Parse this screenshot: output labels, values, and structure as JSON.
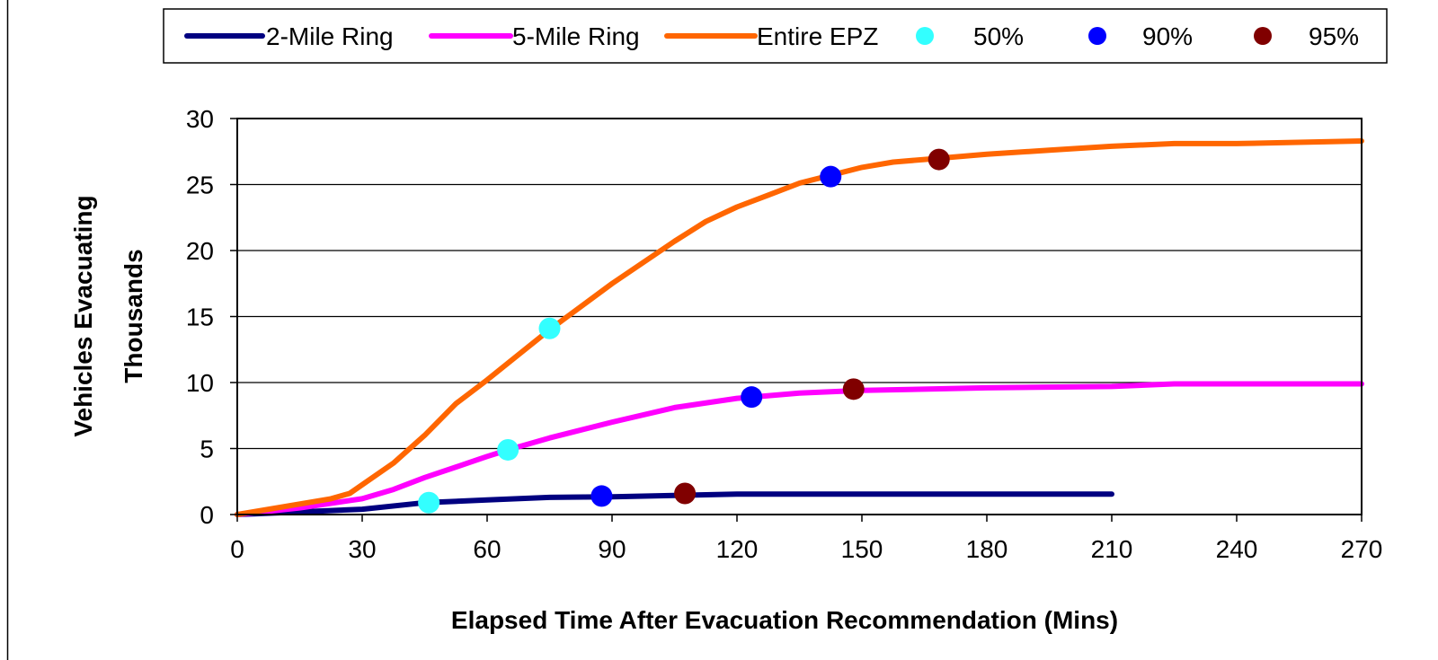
{
  "chart_data": {
    "type": "line",
    "title": "",
    "xlabel": "Elapsed Time After Evacuation Recommendation (Mins)",
    "ylabel": [
      "Vehicles Evacuating",
      "Thousands"
    ],
    "xlim": [
      0,
      270
    ],
    "ylim": [
      0,
      30
    ],
    "x_ticks": [
      0,
      30,
      60,
      90,
      120,
      150,
      180,
      210,
      240,
      270
    ],
    "y_ticks": [
      0,
      5,
      10,
      15,
      20,
      25,
      30
    ],
    "grid": "horizontal",
    "legend_position": "top",
    "series": [
      {
        "name": "2-Mile Ring",
        "kind": "line",
        "color": "#000080",
        "points": [
          [
            0,
            0
          ],
          [
            15,
            0.2
          ],
          [
            30,
            0.4
          ],
          [
            45,
            0.9
          ],
          [
            60,
            1.1
          ],
          [
            75,
            1.3
          ],
          [
            90,
            1.35
          ],
          [
            105,
            1.45
          ],
          [
            120,
            1.55
          ],
          [
            150,
            1.55
          ],
          [
            180,
            1.55
          ],
          [
            210,
            1.55
          ]
        ]
      },
      {
        "name": "5-Mile Ring",
        "kind": "line",
        "color": "#ff00ff",
        "points": [
          [
            0,
            0
          ],
          [
            15,
            0.5
          ],
          [
            30,
            1.2
          ],
          [
            37.5,
            1.9
          ],
          [
            45,
            2.8
          ],
          [
            52.5,
            3.6
          ],
          [
            60,
            4.4
          ],
          [
            65,
            4.9
          ],
          [
            75,
            5.8
          ],
          [
            90,
            7.0
          ],
          [
            105,
            8.1
          ],
          [
            120,
            8.8
          ],
          [
            135,
            9.2
          ],
          [
            150,
            9.4
          ],
          [
            180,
            9.6
          ],
          [
            210,
            9.7
          ],
          [
            225,
            9.9
          ],
          [
            240,
            9.9
          ],
          [
            270,
            9.9
          ]
        ]
      },
      {
        "name": "Entire EPZ",
        "kind": "line",
        "color": "#ff6600",
        "points": [
          [
            0,
            0
          ],
          [
            22.5,
            1.2
          ],
          [
            27,
            1.6
          ],
          [
            37.5,
            3.9
          ],
          [
            45,
            6.0
          ],
          [
            52.5,
            8.4
          ],
          [
            60,
            10.2
          ],
          [
            67.5,
            12.1
          ],
          [
            75,
            14.0
          ],
          [
            90,
            17.5
          ],
          [
            105,
            20.7
          ],
          [
            112.5,
            22.2
          ],
          [
            120,
            23.3
          ],
          [
            127.5,
            24.2
          ],
          [
            135,
            25.1
          ],
          [
            142.5,
            25.7
          ],
          [
            150,
            26.3
          ],
          [
            157.5,
            26.7
          ],
          [
            165,
            26.9
          ],
          [
            180,
            27.3
          ],
          [
            195,
            27.6
          ],
          [
            210,
            27.9
          ],
          [
            225,
            28.1
          ],
          [
            240,
            28.1
          ],
          [
            270,
            28.3
          ]
        ]
      },
      {
        "name": "50%",
        "kind": "marker",
        "color": "#33ffff",
        "points": [
          [
            46,
            0.9
          ],
          [
            65,
            4.9
          ],
          [
            75,
            14.1
          ]
        ]
      },
      {
        "name": "90%",
        "kind": "marker",
        "color": "#0000ff",
        "points": [
          [
            87.5,
            1.4
          ],
          [
            123.5,
            8.9
          ],
          [
            142.5,
            25.6
          ]
        ]
      },
      {
        "name": "95%",
        "kind": "marker",
        "color": "#800000",
        "points": [
          [
            107.5,
            1.6
          ],
          [
            148,
            9.5
          ],
          [
            168.5,
            26.9
          ]
        ]
      }
    ]
  }
}
